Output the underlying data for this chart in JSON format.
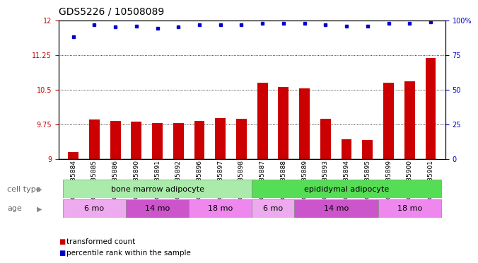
{
  "title": "GDS5226 / 10508089",
  "samples": [
    "GSM635884",
    "GSM635885",
    "GSM635886",
    "GSM635890",
    "GSM635891",
    "GSM635892",
    "GSM635896",
    "GSM635897",
    "GSM635898",
    "GSM635887",
    "GSM635888",
    "GSM635889",
    "GSM635893",
    "GSM635894",
    "GSM635895",
    "GSM635899",
    "GSM635900",
    "GSM635901"
  ],
  "transformed_count": [
    9.15,
    9.85,
    9.82,
    9.81,
    9.77,
    9.77,
    9.82,
    9.88,
    9.87,
    10.65,
    10.55,
    10.52,
    9.87,
    9.42,
    9.41,
    10.65,
    10.68,
    11.18
  ],
  "percentile_rank": [
    88,
    97,
    95,
    96,
    94,
    95,
    97,
    97,
    97,
    98,
    98,
    98,
    97,
    96,
    96,
    98,
    98,
    99
  ],
  "ylim_left": [
    9,
    12
  ],
  "ylim_right": [
    0,
    100
  ],
  "yticks_left": [
    9,
    9.75,
    10.5,
    11.25,
    12
  ],
  "yticks_right": [
    0,
    25,
    50,
    75,
    100
  ],
  "bar_color": "#cc0000",
  "dot_color": "#0000cc",
  "background_color": "#ffffff",
  "plot_bg_color": "#ffffff",
  "cell_type_groups": [
    {
      "label": "bone marrow adipocyte",
      "start": 0,
      "end": 9,
      "color": "#aaeaaa"
    },
    {
      "label": "epididymal adipocyte",
      "start": 9,
      "end": 18,
      "color": "#55dd55"
    }
  ],
  "age_groups": [
    {
      "label": "6 mo",
      "start": 0,
      "end": 3,
      "color": "#eeaaee"
    },
    {
      "label": "14 mo",
      "start": 3,
      "end": 6,
      "color": "#cc55cc"
    },
    {
      "label": "18 mo",
      "start": 6,
      "end": 9,
      "color": "#ee88ee"
    },
    {
      "label": "6 mo",
      "start": 9,
      "end": 11,
      "color": "#eeaaee"
    },
    {
      "label": "14 mo",
      "start": 11,
      "end": 15,
      "color": "#cc55cc"
    },
    {
      "label": "18 mo",
      "start": 15,
      "end": 18,
      "color": "#ee88ee"
    }
  ],
  "legend_bar_label": "transformed count",
  "legend_dot_label": "percentile rank within the sample",
  "cell_type_label": "cell type",
  "age_label": "age",
  "title_fontsize": 10,
  "tick_fontsize": 7,
  "label_fontsize": 8,
  "annot_fontsize": 8
}
